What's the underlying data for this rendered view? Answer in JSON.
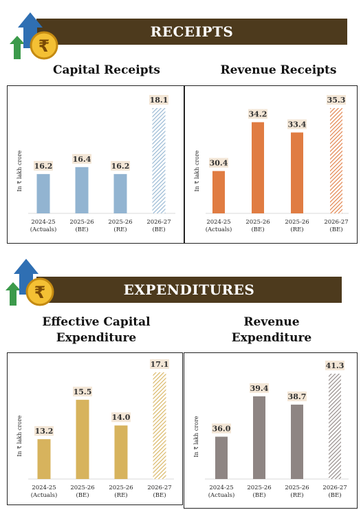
{
  "colors": {
    "banner": "#4d3a1d",
    "label_bg": "#f3e6d6"
  },
  "receipts": {
    "banner": "RECEIPTS"
  },
  "expenditures": {
    "banner": "EXPENDITURES"
  },
  "rupee_icon": "rupee-coin-with-arrows-icon",
  "chart_data": [
    {
      "type": "bar",
      "title": "Capital Receipts",
      "ylabel": "In ₹ lakh crore",
      "categories": [
        [
          "2024-25",
          "(Actuals)"
        ],
        [
          "2025-26",
          "(BE)"
        ],
        [
          "2025-26",
          "(RE)"
        ],
        [
          "2026-27",
          "(BE)"
        ]
      ],
      "values": [
        16.2,
        16.4,
        16.2,
        18.1
      ],
      "labels": [
        "16.2",
        "16.4",
        "16.2",
        "18.1"
      ],
      "color": "#92b4d1",
      "last_bar_hatched": true
    },
    {
      "type": "bar",
      "title": "Revenue Receipts",
      "ylabel": "In ₹ lakh crore",
      "categories": [
        [
          "2024-25",
          "(Actuals)"
        ],
        [
          "2025-26",
          "(BE)"
        ],
        [
          "2025-26",
          "(RE)"
        ],
        [
          "2026-27",
          "(BE)"
        ]
      ],
      "values": [
        30.4,
        34.2,
        33.4,
        35.3
      ],
      "labels": [
        "30.4",
        "34.2",
        "33.4",
        "35.3"
      ],
      "color": "#e07c42",
      "last_bar_hatched": true
    },
    {
      "type": "bar",
      "title": "Effective Capital Expenditure",
      "ylabel": "In ₹ lakh crore",
      "categories": [
        [
          "2024-25",
          "(Actuals)"
        ],
        [
          "2025-26",
          "(BE)"
        ],
        [
          "2025-26",
          "(RE)"
        ],
        [
          "2026-27",
          "(BE)"
        ]
      ],
      "values": [
        13.2,
        15.5,
        14.0,
        17.1
      ],
      "labels": [
        "13.2",
        "15.5",
        "14.0",
        "17.1"
      ],
      "color": "#d7b35d",
      "last_bar_hatched": true
    },
    {
      "type": "bar",
      "title": "Revenue Expenditure",
      "ylabel": "In ₹ lakh crore",
      "categories": [
        [
          "2024-25",
          "(Actuals)"
        ],
        [
          "2025-26",
          "(BE)"
        ],
        [
          "2025-26",
          "(RE)"
        ],
        [
          "2026-27",
          "(BE)"
        ]
      ],
      "values": [
        36.0,
        39.4,
        38.7,
        41.3
      ],
      "labels": [
        "36.0",
        "39.4",
        "38.7",
        "41.3"
      ],
      "color": "#8e8583",
      "last_bar_hatched": true
    }
  ]
}
